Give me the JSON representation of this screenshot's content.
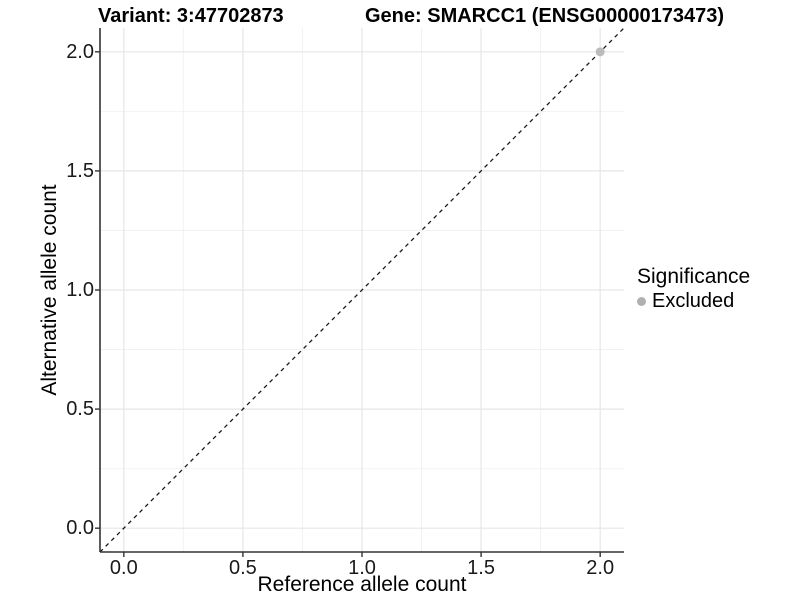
{
  "chart_data": {
    "type": "scatter",
    "title_variant": "Variant: 3:47702873",
    "title_gene": "Gene: SMARCC1 (ENSG00000173473)",
    "xlabel": "Reference allele count",
    "ylabel": "Alternative allele count",
    "xlim": [
      -0.1,
      2.1
    ],
    "ylim": [
      -0.1,
      2.1
    ],
    "x_ticks": [
      0.0,
      0.5,
      1.0,
      1.5,
      2.0
    ],
    "y_ticks": [
      0.0,
      0.5,
      1.0,
      1.5,
      2.0
    ],
    "x_tick_labels": [
      "0.0",
      "0.5",
      "1.0",
      "1.5",
      "2.0"
    ],
    "y_tick_labels": [
      "0.0",
      "0.5",
      "1.0",
      "1.5",
      "2.0"
    ],
    "minor_ticks": [
      0.25,
      0.75,
      1.25,
      1.75
    ],
    "grid": true,
    "reference_line": {
      "type": "identity",
      "equation": "y=x",
      "style": "dashed",
      "color": "#1a1a1a"
    },
    "series": [
      {
        "name": "Excluded",
        "color": "#bcbcbc",
        "points": [
          {
            "x": 2.0,
            "y": 2.0
          }
        ]
      }
    ],
    "legend": {
      "position": "right",
      "title": "Significance",
      "entries": [
        {
          "label": "Excluded",
          "color": "#b0b0b0"
        }
      ]
    }
  },
  "colors": {
    "background": "#ffffff",
    "axis_line": "#333333",
    "tick_mark": "#333333",
    "grid_major": "#e6e6e6",
    "grid_minor": "#f2f2f2",
    "title_text": "#000000",
    "tick_text": "#1a1a1a"
  }
}
